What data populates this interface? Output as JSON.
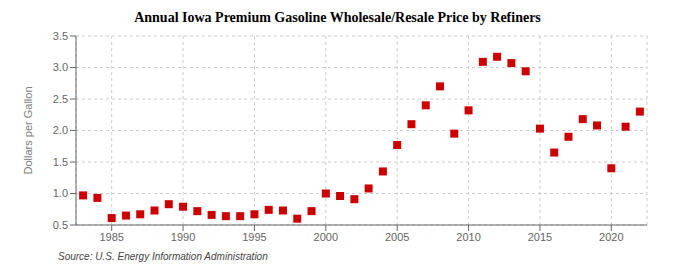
{
  "chart_data": {
    "type": "scatter",
    "title": "Annual Iowa Premium Gasoline Wholesale/Resale Price by Refiners",
    "ylabel": "Dollars per Gallon",
    "annotations": [
      "Source: U.S. Energy Information Administration"
    ],
    "x": [
      1983,
      1984,
      1985,
      1986,
      1987,
      1988,
      1989,
      1990,
      1991,
      1992,
      1993,
      1994,
      1995,
      1996,
      1997,
      1998,
      1999,
      2000,
      2001,
      2002,
      2003,
      2004,
      2005,
      2006,
      2007,
      2008,
      2009,
      2010,
      2011,
      2012,
      2013,
      2014,
      2015,
      2016,
      2017,
      2018,
      2019,
      2020,
      2021,
      2022
    ],
    "values": [
      0.97,
      0.93,
      0.61,
      0.65,
      0.67,
      0.73,
      0.83,
      0.79,
      0.72,
      0.66,
      0.64,
      0.64,
      0.67,
      0.74,
      0.73,
      0.6,
      0.72,
      1.0,
      0.96,
      0.91,
      1.08,
      1.35,
      1.77,
      2.1,
      2.4,
      2.7,
      1.95,
      2.32,
      3.09,
      3.17,
      3.07,
      2.94,
      2.03,
      1.65,
      1.9,
      2.18,
      2.08,
      1.4,
      2.06,
      2.3
    ],
    "color": "#cc0000",
    "marker": "square",
    "xlim": [
      1982.5,
      2022.5
    ],
    "ylim": [
      0.5,
      3.5
    ],
    "xticks": [
      1985,
      1990,
      1995,
      2000,
      2005,
      2010,
      2015,
      2020
    ],
    "yticks": [
      0.5,
      {
        "value": 1.0,
        "label": "1.0"
      },
      1.5,
      {
        "value": 2.0,
        "label": "2.0"
      },
      2.5,
      {
        "value": 3.0,
        "label": "3.0"
      },
      3.5
    ],
    "grid": true
  }
}
